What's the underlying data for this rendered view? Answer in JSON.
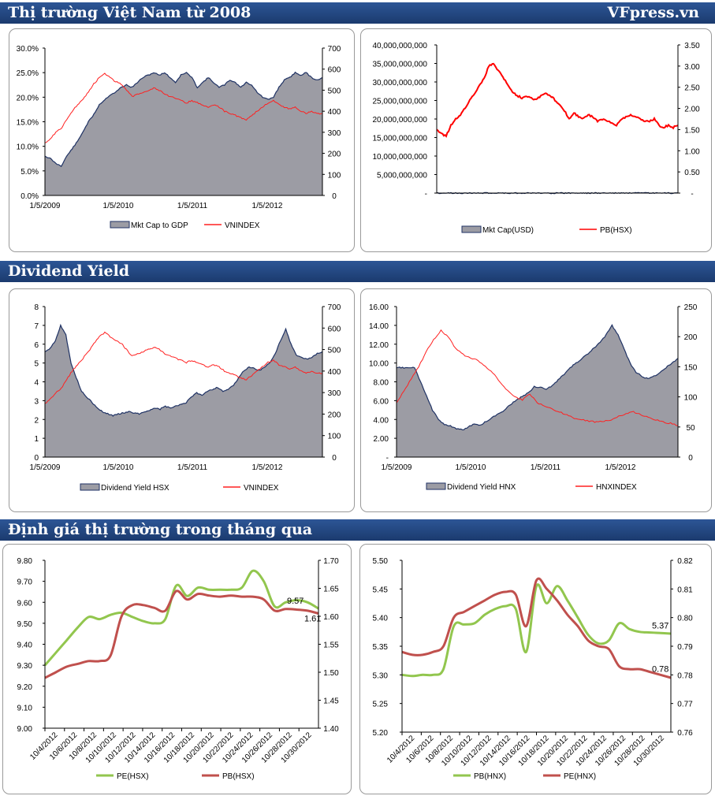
{
  "sections": {
    "s1": {
      "title": "Thị trường Việt Nam từ 2008",
      "brand": "VFpress.vn"
    },
    "s2": {
      "title": "Dividend Yield"
    },
    "s3": {
      "title": "Định giá thị trường trong tháng qua"
    }
  },
  "chart_data": [
    {
      "id": "c1",
      "type": "area",
      "x_tick_labels": [
        "1/5/2009",
        "1/5/2010",
        "1/5/2011",
        "1/5/2012"
      ],
      "left_axis": {
        "ticks": [
          "0.0%",
          "5.0%",
          "10.0%",
          "15.0%",
          "20.0%",
          "25.0%",
          "30.0%"
        ],
        "range": [
          0,
          30
        ]
      },
      "right_axis": {
        "ticks": [
          "0",
          "100",
          "200",
          "300",
          "400",
          "500",
          "600",
          "700"
        ],
        "range": [
          0,
          700
        ]
      },
      "series": [
        {
          "name": "Mkt Cap to GDP",
          "kind": "area",
          "axis": "left",
          "color": "#9c9ca4",
          "stroke": "#1f3264",
          "values": [
            8,
            7.5,
            6.5,
            6,
            8,
            9.5,
            11,
            13,
            15,
            16.5,
            18.5,
            19.5,
            20.5,
            21,
            22,
            22.5,
            22,
            23,
            24,
            24.5,
            25,
            24.5,
            25,
            24,
            23,
            24.5,
            25,
            24,
            22,
            23,
            24,
            23,
            22,
            22.5,
            23.5,
            23,
            22,
            23,
            22.5,
            21,
            20,
            19.5,
            20,
            22,
            23.5,
            24,
            25,
            24.5,
            25,
            24,
            23.5,
            24
          ]
        },
        {
          "name": "VNINDEX",
          "kind": "line",
          "axis": "right",
          "color": "#ff2020",
          "values": [
            250,
            270,
            300,
            320,
            360,
            400,
            430,
            460,
            490,
            530,
            560,
            580,
            560,
            540,
            530,
            500,
            470,
            480,
            490,
            500,
            510,
            500,
            480,
            470,
            460,
            450,
            440,
            450,
            440,
            430,
            420,
            430,
            420,
            400,
            390,
            380,
            370,
            360,
            380,
            400,
            420,
            440,
            450,
            430,
            420,
            410,
            420,
            400,
            390,
            400,
            390,
            390
          ]
        }
      ]
    },
    {
      "id": "c2",
      "type": "area",
      "left_axis": {
        "ticks": [
          "-",
          "5,000,000,000",
          "10,000,000,000",
          "15,000,000,000",
          "20,000,000,000",
          "25,000,000,000",
          "30,000,000,000",
          "35,000,000,000",
          "40,000,000,000"
        ],
        "range": [
          0,
          40000000000
        ]
      },
      "right_axis": {
        "ticks": [
          "-",
          "0.50",
          "1.00",
          "1.50",
          "2.00",
          "2.50",
          "3.00",
          "3.50"
        ],
        "range": [
          0,
          3.5
        ]
      },
      "series": [
        {
          "name": "Mkt Cap(USD)",
          "kind": "area",
          "axis": "left",
          "color": "#9c9ca4",
          "stroke": "#1f3264",
          "values": [
            8,
            7.5,
            7,
            8,
            9.5,
            11,
            13,
            15,
            16.5,
            18.5,
            19.5,
            21,
            22,
            22.5,
            23,
            24,
            25,
            26,
            25.5,
            25,
            26,
            27.5,
            28,
            27,
            26.5,
            28,
            29,
            28,
            27,
            28.5,
            29,
            28,
            27.5,
            28,
            27,
            26,
            26.5,
            25,
            24.5,
            24,
            25,
            26,
            28,
            30,
            31,
            32,
            33,
            32,
            32.5,
            31,
            30.5,
            30.5
          ]
        },
        {
          "name": "PB(HSX)",
          "kind": "line",
          "axis": "right",
          "color": "#ff0000",
          "values": [
            1.5,
            1.4,
            1.35,
            1.6,
            1.75,
            1.85,
            2.0,
            2.2,
            2.35,
            2.55,
            2.7,
            3.0,
            3.05,
            2.9,
            2.75,
            2.55,
            2.4,
            2.3,
            2.25,
            2.3,
            2.25,
            2.2,
            2.3,
            2.35,
            2.3,
            2.2,
            2.1,
            1.95,
            1.75,
            1.9,
            1.8,
            1.75,
            1.85,
            1.8,
            1.7,
            1.75,
            1.7,
            1.65,
            1.6,
            1.75,
            1.8,
            1.85,
            1.8,
            1.75,
            1.7,
            1.7,
            1.75,
            1.6,
            1.55,
            1.6,
            1.55,
            1.6
          ]
        }
      ]
    },
    {
      "id": "c3",
      "type": "area",
      "x_tick_labels": [
        "1/5/2009",
        "1/5/2010",
        "1/5/2011",
        "1/5/2012"
      ],
      "left_axis": {
        "ticks": [
          "0",
          "1",
          "2",
          "3",
          "4",
          "5",
          "6",
          "7",
          "8"
        ],
        "range": [
          0,
          8
        ]
      },
      "right_axis": {
        "ticks": [
          "0",
          "100",
          "200",
          "300",
          "400",
          "500",
          "600",
          "700"
        ],
        "range": [
          0,
          700
        ]
      },
      "series": [
        {
          "name": "Dividend Yield HSX",
          "kind": "area",
          "axis": "left",
          "color": "#9c9ca4",
          "stroke": "#1f3264",
          "values": [
            5.6,
            5.8,
            6.2,
            7.0,
            6.5,
            5.0,
            4.2,
            3.5,
            3.2,
            2.9,
            2.6,
            2.4,
            2.3,
            2.2,
            2.3,
            2.35,
            2.4,
            2.35,
            2.3,
            2.4,
            2.5,
            2.6,
            2.55,
            2.7,
            2.6,
            2.7,
            2.8,
            2.9,
            3.2,
            3.4,
            3.3,
            3.5,
            3.6,
            3.7,
            3.5,
            3.6,
            3.8,
            4.2,
            4.6,
            4.8,
            4.7,
            4.6,
            4.8,
            5.0,
            5.5,
            6.2,
            6.8,
            6.0,
            5.4,
            5.3,
            5.2,
            5.3,
            5.5,
            5.6
          ]
        },
        {
          "name": "VNINDEX",
          "kind": "line",
          "axis": "right",
          "color": "#ff2020",
          "values": [
            250,
            270,
            300,
            320,
            360,
            400,
            430,
            460,
            490,
            530,
            560,
            580,
            560,
            540,
            530,
            500,
            470,
            480,
            490,
            500,
            510,
            500,
            480,
            470,
            460,
            450,
            440,
            450,
            440,
            430,
            420,
            430,
            420,
            400,
            390,
            380,
            370,
            360,
            380,
            400,
            420,
            440,
            450,
            430,
            420,
            410,
            420,
            400,
            390,
            400,
            390,
            390
          ]
        }
      ]
    },
    {
      "id": "c4",
      "type": "area",
      "x_tick_labels": [
        "1/5/2009",
        "1/5/2010",
        "1/5/2011",
        "1/5/2012"
      ],
      "left_axis": {
        "ticks": [
          "-",
          "2.00",
          "4.00",
          "6.00",
          "8.00",
          "10.00",
          "12.00",
          "14.00",
          "16.00"
        ],
        "range": [
          0,
          16
        ]
      },
      "right_axis": {
        "ticks": [
          "0",
          "50",
          "100",
          "150",
          "200",
          "250"
        ],
        "range": [
          0,
          250
        ]
      },
      "series": [
        {
          "name": "Dividend Yield HNX",
          "kind": "area",
          "axis": "left",
          "color": "#9c9ca4",
          "stroke": "#1f3264",
          "values": [
            9.5,
            9.5,
            9.5,
            9.5,
            8.0,
            6.5,
            5.0,
            4.0,
            3.5,
            3.3,
            3.0,
            2.9,
            3.2,
            3.5,
            3.4,
            3.8,
            4.2,
            4.6,
            5.0,
            5.6,
            6.0,
            6.5,
            6.8,
            7.5,
            7.4,
            7.2,
            7.6,
            8.2,
            8.8,
            9.5,
            10.0,
            10.5,
            11.0,
            11.6,
            12.2,
            13.0,
            14.0,
            13.0,
            11.5,
            10.0,
            9.0,
            8.6,
            8.3,
            8.6,
            9.0,
            9.5,
            10.0,
            10.5
          ]
        },
        {
          "name": "HNXINDEX",
          "kind": "line",
          "axis": "right",
          "color": "#ff2020",
          "values": [
            90,
            110,
            130,
            150,
            175,
            195,
            210,
            200,
            180,
            170,
            165,
            160,
            150,
            140,
            125,
            110,
            100,
            95,
            105,
            90,
            85,
            80,
            75,
            70,
            65,
            62,
            60,
            58,
            60,
            62,
            68,
            72,
            75,
            70,
            66,
            62,
            58,
            56,
            52
          ]
        }
      ]
    },
    {
      "id": "c5",
      "type": "line",
      "x_tick_labels": [
        "10/4/2012",
        "10/6/2012",
        "10/8/2012",
        "10/10/2012",
        "10/12/2012",
        "10/14/2012",
        "10/16/2012",
        "10/18/2012",
        "10/20/2012",
        "10/22/2012",
        "10/24/2012",
        "10/26/2012",
        "10/28/2012",
        "10/30/2012"
      ],
      "left_axis": {
        "ticks": [
          "9.00",
          "9.10",
          "9.20",
          "9.30",
          "9.40",
          "9.50",
          "9.60",
          "9.70",
          "9.80"
        ],
        "range": [
          9.0,
          9.8
        ]
      },
      "right_axis": {
        "ticks": [
          "1.40",
          "1.45",
          "1.50",
          "1.55",
          "1.60",
          "1.65",
          "1.70"
        ],
        "range": [
          1.4,
          1.7
        ]
      },
      "series": [
        {
          "name": "PE(HSX)",
          "kind": "line",
          "axis": "left",
          "color": "#92c64e",
          "values": [
            9.3,
            9.36,
            9.42,
            9.48,
            9.53,
            9.52,
            9.54,
            9.55,
            9.53,
            9.51,
            9.5,
            9.52,
            9.68,
            9.63,
            9.67,
            9.66,
            9.66,
            9.66,
            9.67,
            9.75,
            9.7,
            9.58,
            9.6,
            9.61,
            9.6,
            9.57
          ],
          "end_label": "9.57"
        },
        {
          "name": "PB(HSX)",
          "kind": "line",
          "axis": "right",
          "color": "#c0504d",
          "values": [
            1.49,
            1.5,
            1.51,
            1.515,
            1.52,
            1.52,
            1.53,
            1.6,
            1.62,
            1.62,
            1.615,
            1.61,
            1.645,
            1.63,
            1.64,
            1.637,
            1.635,
            1.637,
            1.635,
            1.635,
            1.63,
            1.61,
            1.613,
            1.612,
            1.61,
            1.605
          ],
          "end_label": "1.61"
        }
      ]
    },
    {
      "id": "c6",
      "type": "line",
      "x_tick_labels": [
        "10/4/2012",
        "10/6/2012",
        "10/8/2012",
        "10/10/2012",
        "10/12/2012",
        "10/14/2012",
        "10/16/2012",
        "10/18/2012",
        "10/20/2012",
        "10/22/2012",
        "10/24/2012",
        "10/26/2012",
        "10/28/2012",
        "10/30/2012"
      ],
      "left_axis": {
        "ticks": [
          "5.20",
          "5.25",
          "5.30",
          "5.35",
          "5.40",
          "5.45",
          "5.50"
        ],
        "range": [
          5.2,
          5.5
        ]
      },
      "right_axis": {
        "ticks": [
          "0.76",
          "0.77",
          "0.78",
          "0.79",
          "0.80",
          "0.81",
          "0.82"
        ],
        "range": [
          0.76,
          0.82
        ]
      },
      "series": [
        {
          "name": "PB(HNX)",
          "kind": "line",
          "axis": "left",
          "color": "#92c64e",
          "values": [
            5.3,
            5.298,
            5.3,
            5.3,
            5.31,
            5.385,
            5.388,
            5.39,
            5.405,
            5.415,
            5.42,
            5.415,
            5.34,
            5.455,
            5.425,
            5.455,
            5.43,
            5.4,
            5.37,
            5.355,
            5.36,
            5.39,
            5.38,
            5.375,
            5.374,
            5.373,
            5.372
          ],
          "end_label": "5.37"
        },
        {
          "name": "PE(HNX)",
          "kind": "line",
          "axis": "right",
          "color": "#c0504d",
          "values": [
            0.788,
            0.787,
            0.787,
            0.788,
            0.79,
            0.8,
            0.802,
            0.804,
            0.806,
            0.808,
            0.809,
            0.808,
            0.797,
            0.813,
            0.81,
            0.806,
            0.801,
            0.797,
            0.792,
            0.79,
            0.789,
            0.783,
            0.782,
            0.782,
            0.781,
            0.78,
            0.779
          ],
          "end_label": "0.78"
        }
      ]
    }
  ]
}
